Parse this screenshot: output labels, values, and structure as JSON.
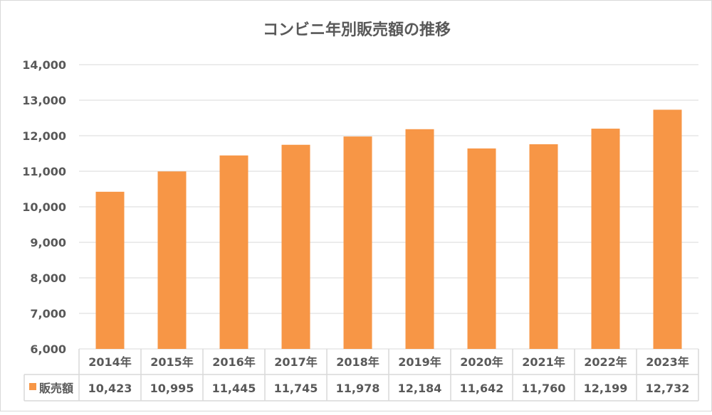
{
  "chart_data": {
    "type": "bar",
    "title": "コンビニ年別販売額の推移",
    "categories": [
      "2014年",
      "2015年",
      "2016年",
      "2017年",
      "2018年",
      "2019年",
      "2020年",
      "2021年",
      "2022年",
      "2023年"
    ],
    "series": [
      {
        "name": "販売額",
        "values": [
          10423,
          10995,
          11445,
          11745,
          11978,
          12184,
          11642,
          11760,
          12199,
          12732
        ],
        "labels": [
          "10,423",
          "10,995",
          "11,445",
          "11,745",
          "11,978",
          "12,184",
          "11,642",
          "11,760",
          "12,199",
          "12,732"
        ],
        "color": "#f79646"
      }
    ],
    "ylim": [
      6000,
      14000
    ],
    "yticks": [
      "6,000",
      "7,000",
      "8,000",
      "9,000",
      "10,000",
      "11,000",
      "12,000",
      "13,000",
      "14,000"
    ],
    "grid": true,
    "legend": "data-table",
    "data_table": true
  }
}
